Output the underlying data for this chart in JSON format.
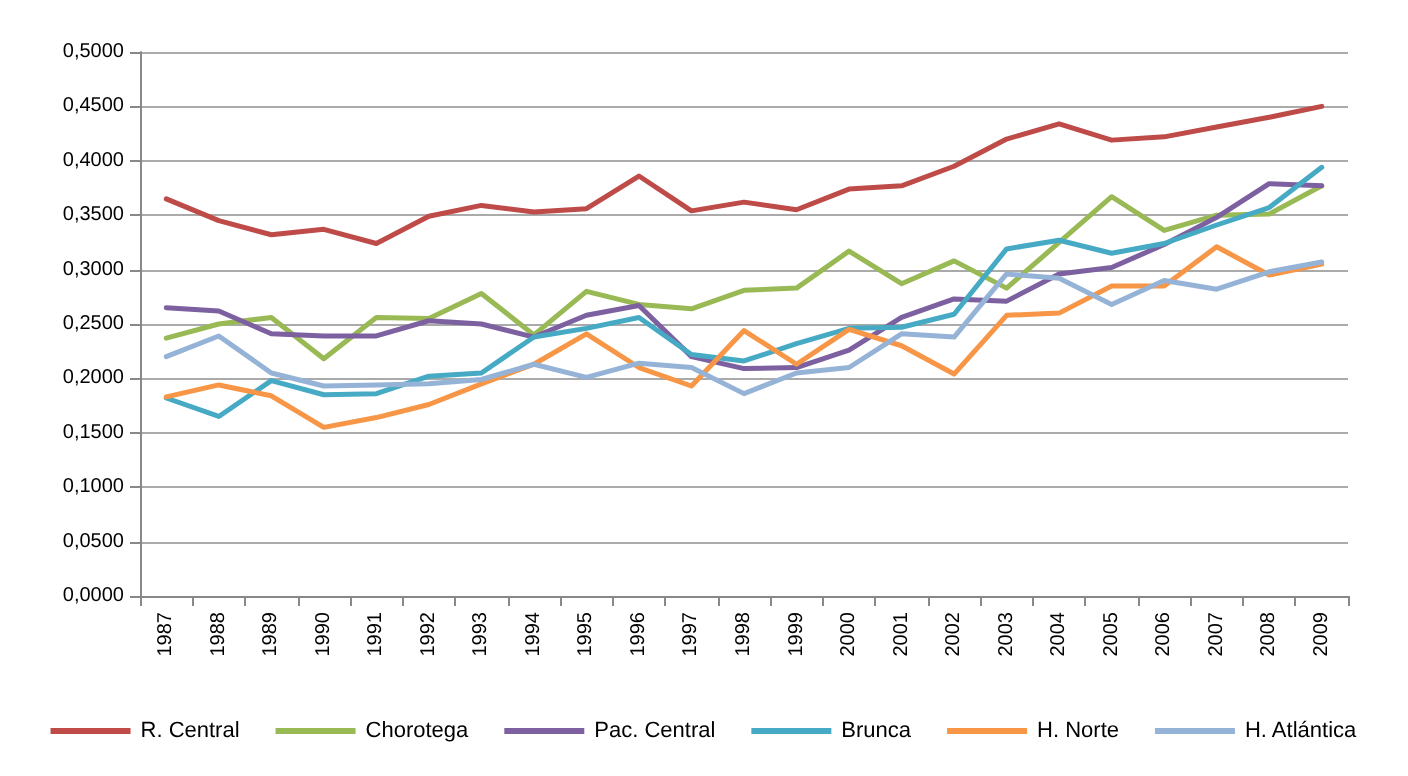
{
  "chart_data": {
    "type": "line",
    "categories": [
      "1987",
      "1988",
      "1989",
      "1990",
      "1991",
      "1992",
      "1993",
      "1994",
      "1995",
      "1996",
      "1997",
      "1998",
      "1999",
      "2000",
      "2001",
      "2002",
      "2003",
      "2004",
      "2005",
      "2006",
      "2007",
      "2008",
      "2009"
    ],
    "series": [
      {
        "name": "R. Central",
        "color": "#be4b48",
        "values": [
          0.365,
          0.345,
          0.332,
          0.337,
          0.324,
          0.349,
          0.359,
          0.353,
          0.356,
          0.386,
          0.354,
          0.362,
          0.355,
          0.374,
          0.377,
          0.395,
          0.42,
          0.434,
          0.419,
          0.422,
          0.431,
          0.44,
          0.45
        ]
      },
      {
        "name": "Chorotega",
        "color": "#98b954",
        "values": [
          0.237,
          0.25,
          0.256,
          0.218,
          0.256,
          0.255,
          0.278,
          0.24,
          0.28,
          0.268,
          0.264,
          0.281,
          0.283,
          0.317,
          0.287,
          0.308,
          0.283,
          0.325,
          0.367,
          0.336,
          0.35,
          0.351,
          0.377
        ]
      },
      {
        "name": "Pac. Central",
        "color": "#7d60a0",
        "values": [
          0.265,
          0.262,
          0.241,
          0.239,
          0.239,
          0.253,
          0.25,
          0.238,
          0.258,
          0.267,
          0.22,
          0.209,
          0.21,
          0.226,
          0.256,
          0.273,
          0.271,
          0.296,
          0.302,
          0.323,
          0.348,
          0.379,
          0.377
        ]
      },
      {
        "name": "Brunca",
        "color": "#46aac5",
        "values": [
          0.182,
          0.165,
          0.198,
          0.185,
          0.186,
          0.202,
          0.205,
          0.238,
          0.246,
          0.256,
          0.222,
          0.216,
          0.232,
          0.246,
          0.247,
          0.259,
          0.319,
          0.327,
          0.315,
          0.324,
          0.341,
          0.357,
          0.394
        ]
      },
      {
        "name": "H. Norte",
        "color": "#f79646",
        "values": [
          0.183,
          0.194,
          0.184,
          0.155,
          0.164,
          0.176,
          0.195,
          0.213,
          0.241,
          0.21,
          0.193,
          0.244,
          0.213,
          0.245,
          0.23,
          0.204,
          0.258,
          0.26,
          0.285,
          0.285,
          0.321,
          0.295,
          0.305
        ]
      },
      {
        "name": "H. Atlántica",
        "color": "#95b3d7",
        "values": [
          0.22,
          0.239,
          0.205,
          0.193,
          0.194,
          0.195,
          0.199,
          0.213,
          0.201,
          0.214,
          0.21,
          0.186,
          0.205,
          0.21,
          0.241,
          0.238,
          0.296,
          0.292,
          0.268,
          0.29,
          0.282,
          0.298,
          0.307
        ]
      }
    ],
    "ylim": [
      0,
      0.5
    ],
    "yticks": [
      {
        "value": 0,
        "label": "0,0000"
      },
      {
        "value": 0.05,
        "label": "0,0500"
      },
      {
        "value": 0.1,
        "label": "0,1000"
      },
      {
        "value": 0.15,
        "label": "0,1500"
      },
      {
        "value": 0.2,
        "label": "0,2000"
      },
      {
        "value": 0.25,
        "label": "0,2500"
      },
      {
        "value": 0.3,
        "label": "0,3000"
      },
      {
        "value": 0.35,
        "label": "0,3500"
      },
      {
        "value": 0.4,
        "label": "0,4000"
      },
      {
        "value": 0.45,
        "label": "0,4500"
      },
      {
        "value": 0.5,
        "label": "0,5000"
      }
    ],
    "grid": "y",
    "legend": "bottom",
    "marker": "none",
    "line_style": "solid"
  }
}
